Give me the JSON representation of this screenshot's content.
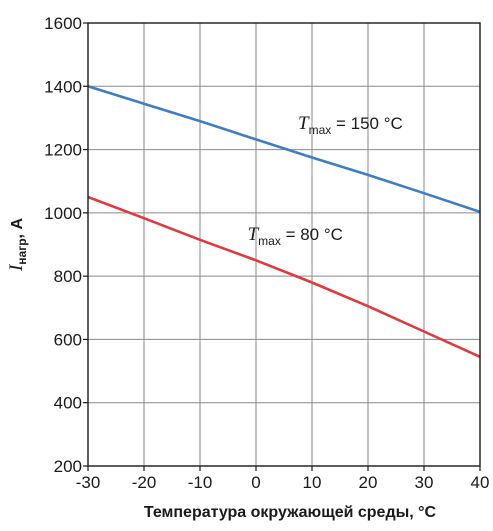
{
  "chart_data": {
    "type": "line",
    "title": "",
    "xlabel": "Температура окружающей среды, °C",
    "ylabel_symbol": "I",
    "ylabel_subscript": "нагр",
    "ylabel_unit": ", A",
    "xlim": [
      -30,
      40
    ],
    "ylim": [
      200,
      1600
    ],
    "x_ticks": [
      -30,
      -20,
      -10,
      0,
      10,
      20,
      30,
      40
    ],
    "y_ticks": [
      200,
      400,
      600,
      800,
      1000,
      1200,
      1400,
      1600
    ],
    "x_tick_labels": [
      "-30",
      "-20",
      "-10",
      "0",
      "10",
      "20",
      "30",
      "40"
    ],
    "y_tick_labels": [
      "200",
      "400",
      "600",
      "800",
      "1000",
      "1200",
      "1400",
      "1600"
    ],
    "grid": true,
    "legend": "none",
    "series": [
      {
        "name": "T_max = 150 °C",
        "color": "#3f7fc1",
        "points": [
          [
            -30,
            1400
          ],
          [
            -20,
            1345
          ],
          [
            -10,
            1290
          ],
          [
            0,
            1232
          ],
          [
            10,
            1175
          ],
          [
            20,
            1120
          ],
          [
            30,
            1062
          ],
          [
            40,
            1003
          ]
        ]
      },
      {
        "name": "T_max = 80 °C",
        "color": "#e03a3e",
        "points": [
          [
            -30,
            1050
          ],
          [
            -20,
            983
          ],
          [
            -10,
            915
          ],
          [
            0,
            850
          ],
          [
            10,
            780
          ],
          [
            20,
            705
          ],
          [
            30,
            625
          ],
          [
            40,
            545
          ]
        ]
      }
    ],
    "annotations": [
      {
        "symbol": "T",
        "subscript": "max",
        "text": " = 150 °C",
        "x": 7.5,
        "y": 1265
      },
      {
        "symbol": "T",
        "subscript": "max",
        "text": " = 80 °C",
        "x": -1.5,
        "y": 915
      }
    ]
  }
}
